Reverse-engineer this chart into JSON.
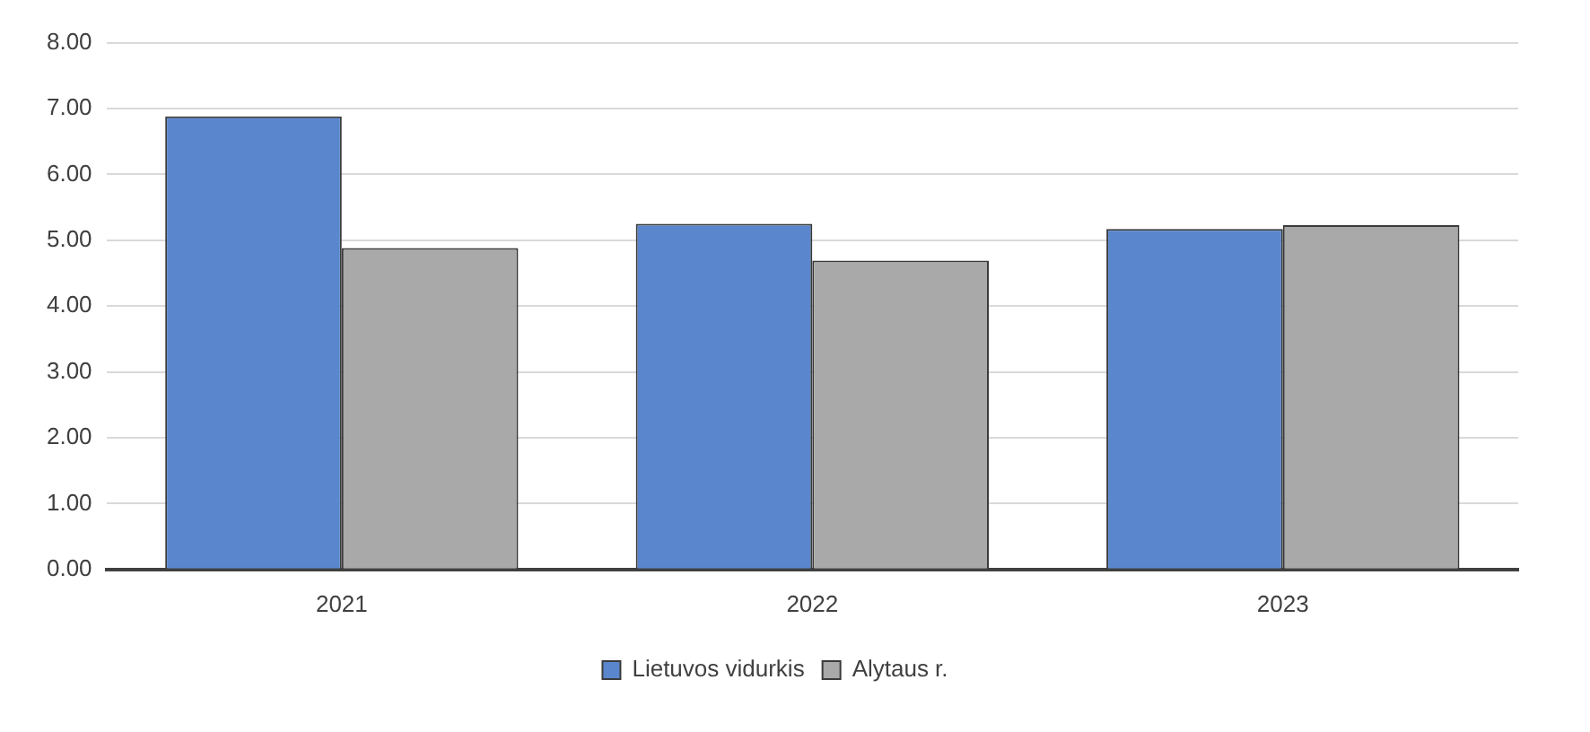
{
  "chart_data": {
    "type": "bar",
    "categories": [
      "2021",
      "2022",
      "2023"
    ],
    "series": [
      {
        "name": "Lietuvos vidurkis",
        "color": "#5a86cd",
        "values": [
          6.88,
          5.25,
          5.17
        ]
      },
      {
        "name": "Alytaus r.",
        "color": "#a9a9a9",
        "values": [
          4.88,
          4.69,
          5.23
        ]
      }
    ],
    "ylim": [
      0,
      8
    ],
    "yticks": [
      {
        "value": 0,
        "label": "0.00"
      },
      {
        "value": 1,
        "label": "1.00"
      },
      {
        "value": 2,
        "label": "2.00"
      },
      {
        "value": 3,
        "label": "3.00"
      },
      {
        "value": 4,
        "label": "4.00"
      },
      {
        "value": 5,
        "label": "5.00"
      },
      {
        "value": 6,
        "label": "6.00"
      },
      {
        "value": 7,
        "label": "7.00"
      },
      {
        "value": 8,
        "label": "8.00"
      }
    ],
    "grid": "y",
    "legend": "bottom"
  }
}
